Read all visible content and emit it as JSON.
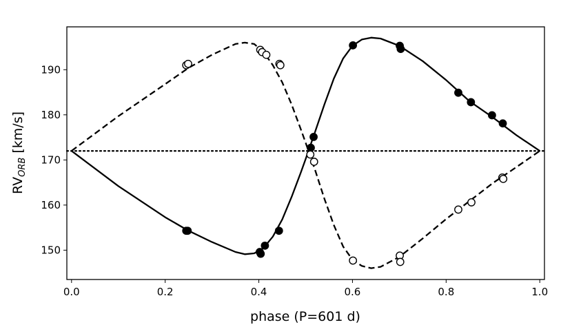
{
  "chart_data": {
    "type": "scatter",
    "title": "",
    "xlabel": "phase (P=601 d)",
    "ylabel_main": "RV",
    "ylabel_sub": "ORB",
    "ylabel_unit": " [km/s]",
    "xlim": [
      -0.01,
      1.01
    ],
    "ylim": [
      143.5,
      199.5
    ],
    "xticks": [
      0.0,
      0.2,
      0.4,
      0.6,
      0.8,
      1.0
    ],
    "xtick_labels": [
      "0.0",
      "0.2",
      "0.4",
      "0.6",
      "0.8",
      "1.0"
    ],
    "yticks": [
      150,
      160,
      170,
      180,
      190
    ],
    "ytick_labels": [
      "150",
      "160",
      "170",
      "180",
      "190"
    ],
    "grid": false,
    "reference_line": {
      "y": 172,
      "style": "dotted"
    },
    "series": [
      {
        "marker": "filled-circle",
        "points": [
          [
            0.245,
            154.3
          ],
          [
            0.248,
            154.3
          ],
          [
            0.402,
            149.6
          ],
          [
            0.404,
            149.2
          ],
          [
            0.413,
            151.0
          ],
          [
            0.443,
            154.3
          ],
          [
            0.511,
            172.7
          ],
          [
            0.517,
            175.1
          ],
          [
            0.601,
            195.4
          ],
          [
            0.701,
            195.3
          ],
          [
            0.703,
            194.6
          ],
          [
            0.826,
            184.9
          ],
          [
            0.853,
            182.8
          ],
          [
            0.898,
            179.9
          ],
          [
            0.921,
            178.1
          ]
        ]
      },
      {
        "marker": "open-circle",
        "points": [
          [
            0.245,
            191.0
          ],
          [
            0.249,
            191.3
          ],
          [
            0.403,
            194.4
          ],
          [
            0.407,
            193.9
          ],
          [
            0.416,
            193.3
          ],
          [
            0.444,
            191.3
          ],
          [
            0.446,
            191.0
          ],
          [
            0.51,
            171.2
          ],
          [
            0.518,
            169.6
          ],
          [
            0.601,
            147.7
          ],
          [
            0.701,
            148.8
          ],
          [
            0.702,
            147.4
          ],
          [
            0.826,
            159.0
          ],
          [
            0.854,
            160.6
          ],
          [
            0.92,
            166.1
          ],
          [
            0.922,
            165.8
          ]
        ]
      },
      {
        "line": "solid",
        "points": [
          [
            0.0,
            172.0
          ],
          [
            0.1,
            164.2
          ],
          [
            0.2,
            157.3
          ],
          [
            0.25,
            154.3
          ],
          [
            0.3,
            151.8
          ],
          [
            0.35,
            149.6
          ],
          [
            0.37,
            149.1
          ],
          [
            0.39,
            149.3
          ],
          [
            0.41,
            150.5
          ],
          [
            0.43,
            153.0
          ],
          [
            0.45,
            156.8
          ],
          [
            0.47,
            161.8
          ],
          [
            0.49,
            167.3
          ],
          [
            0.5,
            170.2
          ],
          [
            0.52,
            176.2
          ],
          [
            0.54,
            182.3
          ],
          [
            0.56,
            188.0
          ],
          [
            0.58,
            192.5
          ],
          [
            0.6,
            195.3
          ],
          [
            0.62,
            196.7
          ],
          [
            0.64,
            197.1
          ],
          [
            0.66,
            196.9
          ],
          [
            0.7,
            195.3
          ],
          [
            0.75,
            191.9
          ],
          [
            0.8,
            187.7
          ],
          [
            0.85,
            183.0
          ],
          [
            0.9,
            179.4
          ],
          [
            0.95,
            175.5
          ],
          [
            1.0,
            172.0
          ]
        ]
      },
      {
        "line": "dashed",
        "points": [
          [
            0.0,
            172.0
          ],
          [
            0.1,
            179.7
          ],
          [
            0.2,
            186.8
          ],
          [
            0.25,
            190.4
          ],
          [
            0.3,
            193.3
          ],
          [
            0.35,
            195.7
          ],
          [
            0.37,
            196.0
          ],
          [
            0.39,
            195.7
          ],
          [
            0.41,
            193.9
          ],
          [
            0.43,
            191.0
          ],
          [
            0.45,
            187.2
          ],
          [
            0.47,
            182.3
          ],
          [
            0.49,
            176.7
          ],
          [
            0.5,
            173.8
          ],
          [
            0.52,
            167.8
          ],
          [
            0.54,
            161.4
          ],
          [
            0.56,
            155.6
          ],
          [
            0.58,
            150.8
          ],
          [
            0.6,
            147.9
          ],
          [
            0.62,
            146.5
          ],
          [
            0.64,
            146.0
          ],
          [
            0.66,
            146.3
          ],
          [
            0.7,
            148.5
          ],
          [
            0.75,
            152.6
          ],
          [
            0.8,
            156.9
          ],
          [
            0.85,
            160.9
          ],
          [
            0.9,
            164.9
          ],
          [
            0.95,
            168.4
          ],
          [
            1.0,
            172.0
          ]
        ]
      }
    ]
  }
}
